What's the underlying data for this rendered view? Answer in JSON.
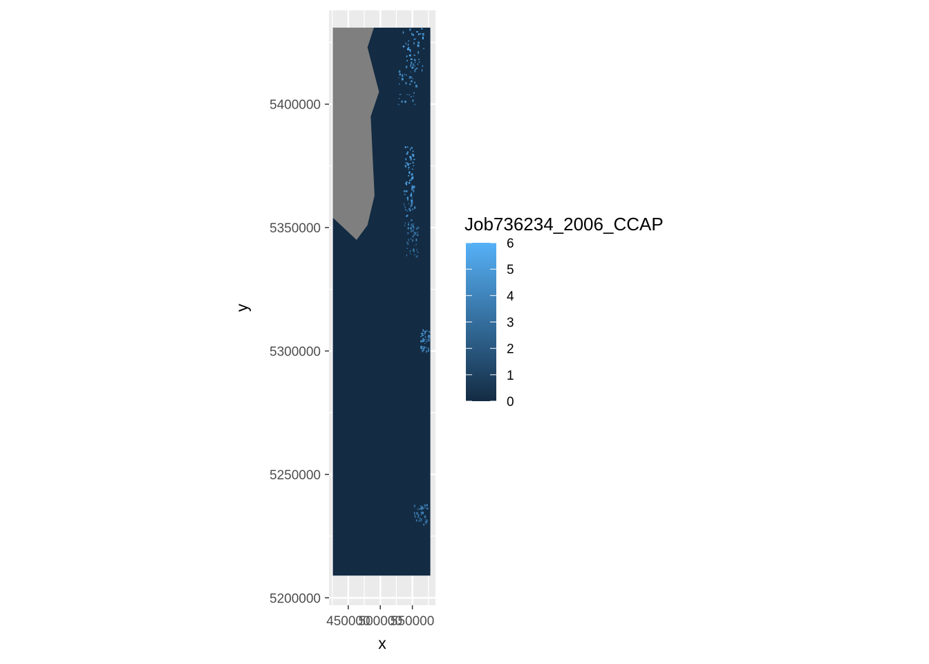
{
  "chart_data": {
    "type": "heatmap",
    "title": "",
    "xlabel": "x",
    "ylabel": "y",
    "x_tick_labels": [
      "450000",
      "500000",
      "550000"
    ],
    "x_ticks": [
      450000,
      500000,
      550000
    ],
    "y_tick_labels": [
      "5200000",
      "5250000",
      "5300000",
      "5350000",
      "5400000"
    ],
    "y_ticks": [
      5200000,
      5250000,
      5300000,
      5350000,
      5400000
    ],
    "xlim": [
      420000,
      586000
    ],
    "ylim": [
      5197000,
      5438000
    ],
    "raster_extent": {
      "x": [
        426000,
        578000
      ],
      "y": [
        5209000,
        5431000
      ]
    },
    "background_value": 0,
    "na_region": {
      "color": "#7f7f7f",
      "polygon": [
        [
          426000,
          5431000
        ],
        [
          490000,
          5431000
        ],
        [
          480000,
          5423000
        ],
        [
          498000,
          5405000
        ],
        [
          485000,
          5395000
        ],
        [
          491000,
          5363000
        ],
        [
          480000,
          5351000
        ],
        [
          463000,
          5345000
        ],
        [
          426000,
          5354000
        ]
      ]
    },
    "highlight_clusters": [
      {
        "x": [
          535000,
          568000
        ],
        "y": [
          5412000,
          5431000
        ],
        "value": 6
      },
      {
        "x": [
          528000,
          555000
        ],
        "y": [
          5400000,
          5418000
        ],
        "value": 5
      },
      {
        "x": [
          538000,
          552000
        ],
        "y": [
          5365000,
          5383000
        ],
        "value": 6
      },
      {
        "x": [
          536000,
          553000
        ],
        "y": [
          5350000,
          5368000
        ],
        "value": 5
      },
      {
        "x": [
          540000,
          558000
        ],
        "y": [
          5338000,
          5352000
        ],
        "value": 4
      },
      {
        "x": [
          562000,
          576000
        ],
        "y": [
          5300000,
          5309000
        ],
        "value": 5
      },
      {
        "x": [
          552000,
          572000
        ],
        "y": [
          5230000,
          5238000
        ],
        "value": 4
      }
    ],
    "legend": {
      "title": "Job736234_2006_CCAP",
      "min": 0,
      "max": 6,
      "labels": [
        "6",
        "5",
        "4",
        "3",
        "2",
        "1",
        "0"
      ],
      "values": [
        6,
        5,
        4,
        3,
        2,
        1,
        0
      ],
      "low_color": "#132B43",
      "high_color": "#56B1F7",
      "placement": "right"
    },
    "panel_background": "#EBEBEB",
    "grid": true
  }
}
